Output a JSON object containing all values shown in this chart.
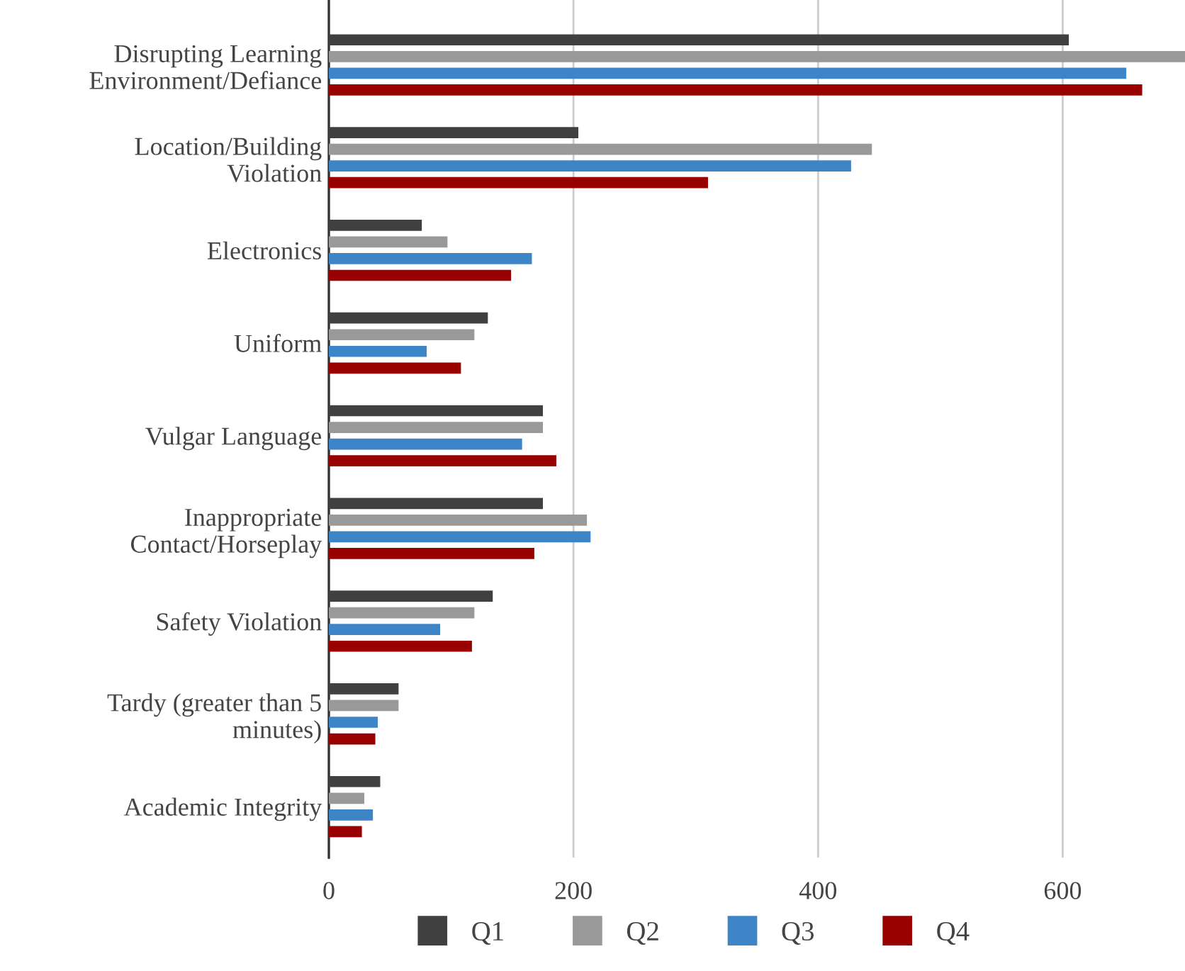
{
  "chart_data": {
    "type": "bar",
    "orientation": "horizontal",
    "categories": [
      "Disrupting Learning Environment/Defiance",
      "Location/Building Violation",
      "Electronics",
      "Uniform",
      "Vulgar Language",
      "Inappropriate Contact/Horseplay",
      "Safety Violation",
      "Tardy (greater than 5 minutes)",
      "Academic Integrity"
    ],
    "series": [
      {
        "name": "Q1",
        "color": "#404040",
        "values": [
          605,
          204,
          76,
          130,
          175,
          175,
          134,
          57,
          42
        ]
      },
      {
        "name": "Q2",
        "color": "#999999",
        "values": [
          700,
          444,
          97,
          119,
          175,
          211,
          119,
          57,
          29
        ]
      },
      {
        "name": "Q3",
        "color": "#3d85c6",
        "values": [
          652,
          427,
          166,
          80,
          158,
          214,
          91,
          40,
          36
        ]
      },
      {
        "name": "Q4",
        "color": "#990000",
        "values": [
          665,
          310,
          149,
          108,
          186,
          168,
          117,
          38,
          27
        ]
      }
    ],
    "xlim": [
      0,
      700
    ],
    "xticks": [
      0,
      200,
      400,
      600
    ],
    "grid": "x",
    "legend": "bottom"
  }
}
